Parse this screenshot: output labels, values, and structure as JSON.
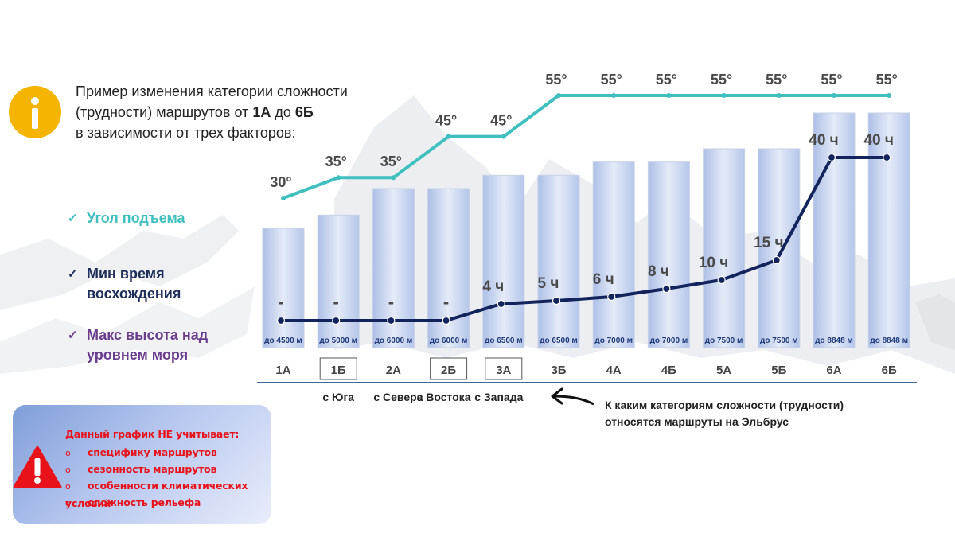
{
  "intro": {
    "line1": "Пример изменения категории сложности",
    "line2_prefix": "(трудности) маршрутов от ",
    "line2_from": "1А",
    "line2_mid": " до ",
    "line2_to": "6Б",
    "line3": "в зависимости от трех факторов:"
  },
  "legend": [
    {
      "check": "✓",
      "label": "Угол подъема",
      "color": "#3fc0bf"
    },
    {
      "check": "✓",
      "label": "Мин время восхождения",
      "color": "#1f2d5a"
    },
    {
      "check": "✓",
      "label": "Макс высота над уровнем моря",
      "color": "#6a3d8f"
    }
  ],
  "warning": {
    "title": "Данный график НЕ учитывает:",
    "bullet": "o",
    "items": [
      "специфику маршрутов",
      "сезонность маршрутов",
      "особенности климатических условий",
      "сложность рельефа"
    ]
  },
  "note": {
    "line1": "К каким категориям сложности (трудности)",
    "line2": "относятся маршруты на Эльбрус"
  },
  "colors": {
    "angle_line": "#3fc0bf",
    "time_line": "#13235b",
    "bar_fill": "#c6d3ef",
    "axis_line": "#3e6a9a",
    "warning_text": "#e8121b",
    "info_icon": "#f5b400"
  },
  "chart_data": {
    "type": "bar",
    "categories": [
      "1А",
      "1Б",
      "2А",
      "2Б",
      "3А",
      "3Б",
      "4А",
      "4Б",
      "5А",
      "5Б",
      "6А",
      "6Б"
    ],
    "highlighted_categories": [
      "1Б",
      "2Б",
      "3А"
    ],
    "bar_labels": [
      "до 4500 м",
      "до 5000 м",
      "до 6000 м",
      "до 6000 м",
      "до 6500 м",
      "до 6500 м",
      "до 7000 м",
      "до 7000 м",
      "до 7500 м",
      "до 7500 м",
      "до 8848 м",
      "до 8848 м"
    ],
    "series": [
      {
        "name": "Макс высота над уровнем моря",
        "type": "bar",
        "values": [
          4500,
          5000,
          6000,
          6000,
          6500,
          6500,
          7000,
          7000,
          7500,
          7500,
          8848,
          8848
        ]
      },
      {
        "name": "Угол подъема",
        "type": "line",
        "values": [
          30,
          35,
          35,
          45,
          45,
          55,
          55,
          55,
          55,
          55,
          55,
          55
        ],
        "labels": [
          "30°",
          "35°",
          "35°",
          "45°",
          "45°",
          "55°",
          "55°",
          "55°",
          "55°",
          "55°",
          "55°",
          "55°"
        ]
      },
      {
        "name": "Мин время восхождения",
        "type": "line",
        "values": [
          0,
          0,
          0,
          0,
          4,
          5,
          6,
          8,
          10,
          15,
          40,
          40
        ],
        "labels": [
          "-",
          "-",
          "-",
          "-",
          "4 ч",
          "5 ч",
          "6 ч",
          "8 ч",
          "10 ч",
          "15 ч",
          "40 ч",
          "40 ч"
        ]
      }
    ],
    "group_labels": [
      {
        "category": "1Б",
        "label": "с Юга"
      },
      {
        "category": "2А",
        "label": "с Севера"
      },
      {
        "category": "2Б",
        "label": "с Востока"
      },
      {
        "category": "3А",
        "label": "с Запада"
      }
    ],
    "grid": false,
    "legend": "left"
  }
}
